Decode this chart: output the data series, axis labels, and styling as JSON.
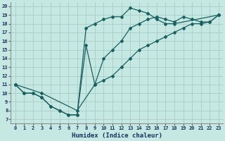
{
  "xlabel": "Humidex (Indice chaleur)",
  "bg_color": "#c5e8e2",
  "grid_color": "#a0c8c0",
  "line_color": "#1a6060",
  "xlim": [
    -0.5,
    23.5
  ],
  "ylim": [
    6.5,
    20.5
  ],
  "xticks": [
    0,
    1,
    2,
    3,
    4,
    5,
    6,
    7,
    8,
    9,
    10,
    11,
    12,
    13,
    14,
    15,
    16,
    17,
    18,
    19,
    20,
    21,
    22,
    23
  ],
  "yticks": [
    7,
    8,
    9,
    10,
    11,
    12,
    13,
    14,
    15,
    16,
    17,
    18,
    19,
    20
  ],
  "line1_x": [
    0,
    1,
    2,
    3,
    4,
    5,
    6,
    7,
    8,
    9,
    10,
    11,
    12,
    13,
    14,
    15,
    16,
    17,
    18,
    19,
    20,
    21,
    22,
    23
  ],
  "line1_y": [
    11,
    10,
    10,
    9.5,
    8.5,
    8.0,
    7.5,
    7.5,
    15.5,
    11,
    14,
    15,
    16,
    17.5,
    18,
    18.5,
    18.8,
    18.5,
    18.2,
    18.8,
    18.5,
    18.2,
    18.2,
    19
  ],
  "line2_x": [
    0,
    1,
    2,
    3,
    4,
    5,
    6,
    7,
    8,
    9,
    10,
    11,
    12,
    13,
    14,
    15,
    16,
    17,
    18,
    23
  ],
  "line2_y": [
    11,
    10,
    10,
    9.5,
    8.5,
    8.0,
    7.5,
    7.5,
    17.5,
    18,
    18.5,
    18.8,
    18.8,
    19.8,
    19.5,
    19.2,
    18.5,
    18.0,
    18.0,
    19
  ],
  "line3_x": [
    0,
    3,
    7,
    9,
    10,
    11,
    12,
    13,
    14,
    15,
    16,
    17,
    18,
    19,
    20,
    21,
    22,
    23
  ],
  "line3_y": [
    11,
    10,
    8.0,
    11,
    11.5,
    12,
    13,
    14,
    15,
    15.5,
    16,
    16.5,
    17,
    17.5,
    18,
    18,
    18.2,
    19
  ]
}
